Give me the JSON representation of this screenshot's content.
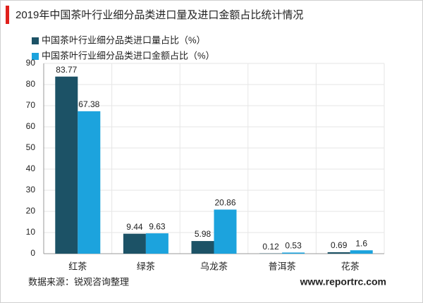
{
  "chart_data": {
    "type": "bar",
    "title": "2019年中国茶叶行业细分品类进口量及进口金额占比统计情况",
    "categories": [
      "红茶",
      "绿茶",
      "乌龙茶",
      "普洱茶",
      "花茶"
    ],
    "series": [
      {
        "name": "中国茶叶行业细分品类进口量占比（%）",
        "color": "#1c5266",
        "values": [
          83.77,
          9.44,
          5.98,
          0.12,
          0.69
        ]
      },
      {
        "name": "中国茶叶行业细分品类进口金额占比（%）",
        "color": "#1ca3dd",
        "values": [
          67.38,
          9.63,
          20.86,
          0.53,
          1.6
        ]
      }
    ],
    "ylim": [
      0,
      90
    ],
    "yticks": [
      0,
      10,
      20,
      30,
      40,
      50,
      60,
      70,
      80,
      90
    ],
    "grid": true,
    "source": "数据来源：锐观咨询整理",
    "website": "www.reportrc.com"
  }
}
